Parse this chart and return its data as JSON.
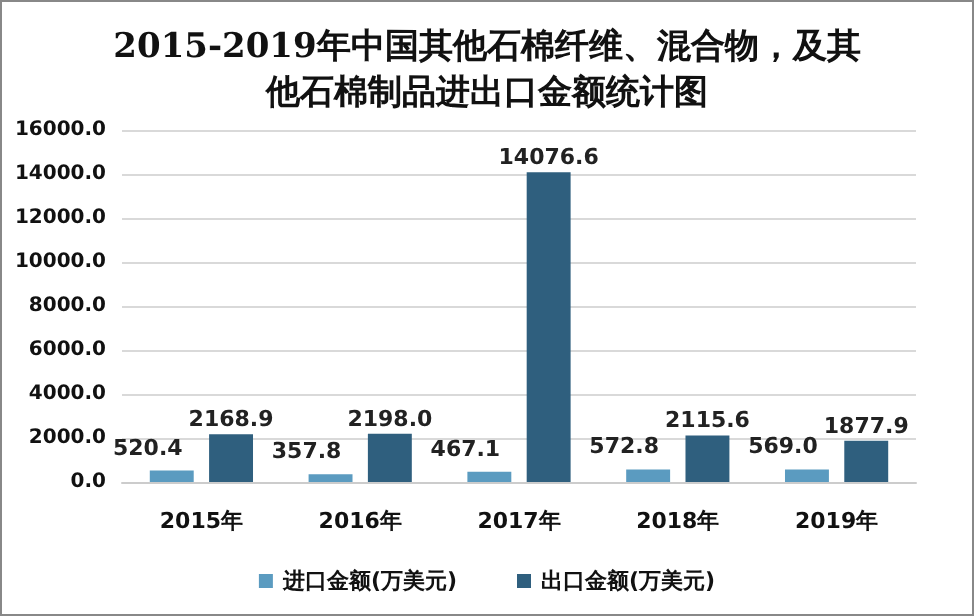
{
  "chart_data": {
    "type": "bar",
    "title": "2015-2019年中国其他石棉纤维、混合物，及其他石棉制品进出口金额统计图",
    "categories": [
      "2015年",
      "2016年",
      "2017年",
      "2018年",
      "2019年"
    ],
    "series": [
      {
        "name": "进口金额(万美元)",
        "color": "#5b9bc0",
        "values": [
          520.4,
          357.8,
          467.1,
          572.8,
          569.0
        ],
        "value_labels": [
          "520.4",
          "357.8",
          "467.1",
          "572.8",
          "569.0"
        ]
      },
      {
        "name": "出口金额(万美元)",
        "color": "#2f5f7e",
        "values": [
          2168.9,
          2198.0,
          14076.6,
          2115.6,
          1877.9
        ],
        "value_labels": [
          "2168.9",
          "2198.0",
          "14076.6",
          "2115.6",
          "1877.9"
        ]
      }
    ],
    "ylim": [
      0,
      16000
    ],
    "yticks": [
      {
        "value": 0,
        "label": "0.0"
      },
      {
        "value": 2000,
        "label": "2000.0"
      },
      {
        "value": 4000,
        "label": "4000.0"
      },
      {
        "value": 6000,
        "label": "6000.0"
      },
      {
        "value": 8000,
        "label": "8000.0"
      },
      {
        "value": 10000,
        "label": "10000.0"
      },
      {
        "value": 12000,
        "label": "12000.0"
      },
      {
        "value": 14000,
        "label": "14000.0"
      },
      {
        "value": 16000,
        "label": "16000.0"
      }
    ],
    "grid": "y",
    "legend": "bottom"
  }
}
